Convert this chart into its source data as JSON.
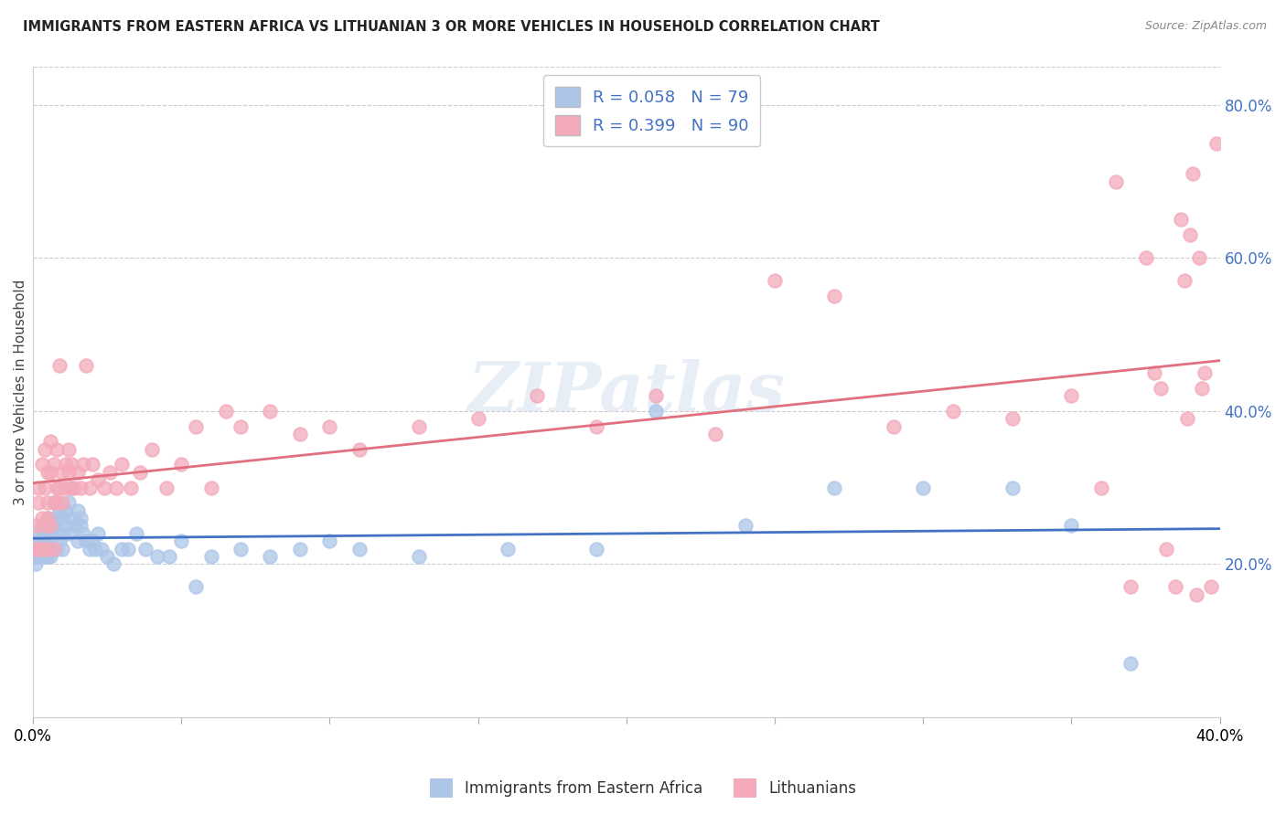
{
  "title": "IMMIGRANTS FROM EASTERN AFRICA VS LITHUANIAN 3 OR MORE VEHICLES IN HOUSEHOLD CORRELATION CHART",
  "source": "Source: ZipAtlas.com",
  "ylabel": "3 or more Vehicles in Household",
  "xlim": [
    0.0,
    0.4
  ],
  "ylim": [
    0.0,
    0.85
  ],
  "x_tick_positions": [
    0.0,
    0.05,
    0.1,
    0.15,
    0.2,
    0.25,
    0.3,
    0.35,
    0.4
  ],
  "x_tick_labels": [
    "0.0%",
    "",
    "",
    "",
    "",
    "",
    "",
    "",
    "40.0%"
  ],
  "y_ticks_right": [
    0.2,
    0.4,
    0.6,
    0.8
  ],
  "y_tick_labels_right": [
    "20.0%",
    "40.0%",
    "60.0%",
    "80.0%"
  ],
  "blue_R": 0.058,
  "blue_N": 79,
  "pink_R": 0.399,
  "pink_N": 90,
  "blue_color": "#adc6e8",
  "pink_color": "#f4aabb",
  "blue_line_color": "#4472c4",
  "pink_line_color": "#e07080",
  "legend_label_blue": "Immigrants from Eastern Africa",
  "legend_label_pink": "Lithuanians",
  "watermark": "ZIPatlas",
  "blue_scatter_x": [
    0.001,
    0.001,
    0.001,
    0.002,
    0.002,
    0.002,
    0.002,
    0.003,
    0.003,
    0.003,
    0.003,
    0.004,
    0.004,
    0.004,
    0.004,
    0.005,
    0.005,
    0.005,
    0.005,
    0.005,
    0.006,
    0.006,
    0.006,
    0.007,
    0.007,
    0.007,
    0.008,
    0.008,
    0.008,
    0.008,
    0.009,
    0.009,
    0.01,
    0.01,
    0.01,
    0.011,
    0.011,
    0.012,
    0.012,
    0.013,
    0.013,
    0.014,
    0.015,
    0.015,
    0.016,
    0.016,
    0.017,
    0.018,
    0.019,
    0.02,
    0.021,
    0.022,
    0.023,
    0.025,
    0.027,
    0.03,
    0.032,
    0.035,
    0.038,
    0.042,
    0.046,
    0.05,
    0.055,
    0.06,
    0.07,
    0.08,
    0.09,
    0.1,
    0.11,
    0.13,
    0.16,
    0.19,
    0.21,
    0.24,
    0.27,
    0.3,
    0.33,
    0.35,
    0.37
  ],
  "blue_scatter_y": [
    0.21,
    0.22,
    0.2,
    0.23,
    0.21,
    0.22,
    0.24,
    0.22,
    0.23,
    0.21,
    0.25,
    0.22,
    0.24,
    0.21,
    0.23,
    0.25,
    0.22,
    0.21,
    0.23,
    0.26,
    0.22,
    0.24,
    0.21,
    0.28,
    0.25,
    0.22,
    0.26,
    0.24,
    0.28,
    0.22,
    0.27,
    0.23,
    0.26,
    0.24,
    0.22,
    0.27,
    0.25,
    0.28,
    0.24,
    0.26,
    0.3,
    0.25,
    0.27,
    0.23,
    0.26,
    0.25,
    0.24,
    0.23,
    0.22,
    0.23,
    0.22,
    0.24,
    0.22,
    0.21,
    0.2,
    0.22,
    0.22,
    0.24,
    0.22,
    0.21,
    0.21,
    0.23,
    0.17,
    0.21,
    0.22,
    0.21,
    0.22,
    0.23,
    0.22,
    0.21,
    0.22,
    0.22,
    0.4,
    0.25,
    0.3,
    0.3,
    0.3,
    0.25,
    0.07
  ],
  "pink_scatter_x": [
    0.001,
    0.001,
    0.002,
    0.002,
    0.002,
    0.003,
    0.003,
    0.003,
    0.004,
    0.004,
    0.004,
    0.005,
    0.005,
    0.005,
    0.005,
    0.006,
    0.006,
    0.006,
    0.007,
    0.007,
    0.007,
    0.008,
    0.008,
    0.008,
    0.009,
    0.009,
    0.01,
    0.01,
    0.011,
    0.011,
    0.012,
    0.012,
    0.013,
    0.013,
    0.014,
    0.015,
    0.016,
    0.017,
    0.018,
    0.019,
    0.02,
    0.022,
    0.024,
    0.026,
    0.028,
    0.03,
    0.033,
    0.036,
    0.04,
    0.045,
    0.05,
    0.055,
    0.06,
    0.065,
    0.07,
    0.08,
    0.09,
    0.1,
    0.11,
    0.13,
    0.15,
    0.17,
    0.19,
    0.21,
    0.23,
    0.25,
    0.27,
    0.29,
    0.31,
    0.33,
    0.35,
    0.36,
    0.365,
    0.37,
    0.375,
    0.378,
    0.38,
    0.382,
    0.385,
    0.387,
    0.388,
    0.389,
    0.39,
    0.391,
    0.392,
    0.393,
    0.394,
    0.395,
    0.397,
    0.399
  ],
  "pink_scatter_y": [
    0.22,
    0.25,
    0.28,
    0.22,
    0.3,
    0.26,
    0.33,
    0.22,
    0.25,
    0.3,
    0.35,
    0.26,
    0.32,
    0.28,
    0.22,
    0.25,
    0.32,
    0.36,
    0.28,
    0.33,
    0.22,
    0.3,
    0.35,
    0.28,
    0.3,
    0.46,
    0.32,
    0.28,
    0.33,
    0.3,
    0.32,
    0.35,
    0.3,
    0.33,
    0.3,
    0.32,
    0.3,
    0.33,
    0.46,
    0.3,
    0.33,
    0.31,
    0.3,
    0.32,
    0.3,
    0.33,
    0.3,
    0.32,
    0.35,
    0.3,
    0.33,
    0.38,
    0.3,
    0.4,
    0.38,
    0.4,
    0.37,
    0.38,
    0.35,
    0.38,
    0.39,
    0.42,
    0.38,
    0.42,
    0.37,
    0.57,
    0.55,
    0.38,
    0.4,
    0.39,
    0.42,
    0.3,
    0.7,
    0.17,
    0.6,
    0.45,
    0.43,
    0.22,
    0.17,
    0.65,
    0.57,
    0.39,
    0.63,
    0.71,
    0.16,
    0.6,
    0.43,
    0.45,
    0.17,
    0.75
  ]
}
